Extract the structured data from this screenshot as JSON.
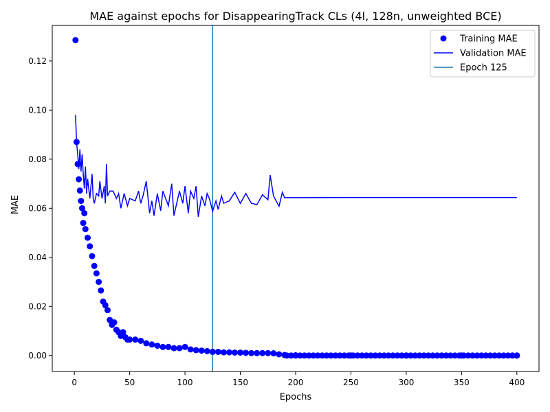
{
  "chart_data": {
    "type": "line",
    "title": "MAE against epochs for DisappearingTrack CLs (4l, 128n, unweighted BCE)",
    "xlabel": "Epochs",
    "ylabel": "MAE",
    "xlim": [
      -20,
      420
    ],
    "ylim": [
      -0.0065,
      0.1345
    ],
    "xticks": [
      0,
      50,
      100,
      150,
      200,
      250,
      300,
      350,
      400
    ],
    "yticks": [
      0.0,
      0.02,
      0.04,
      0.06,
      0.08,
      0.1,
      0.12
    ],
    "ytick_labels": [
      "0.00",
      "0.02",
      "0.04",
      "0.06",
      "0.08",
      "0.10",
      "0.12"
    ],
    "legend_position": "top-right",
    "grid": false,
    "series": [
      {
        "name": "Training MAE",
        "style": "markers",
        "color": "#0000ff",
        "x": [
          1,
          2,
          3,
          4,
          5,
          6,
          7,
          8,
          9,
          10,
          12,
          14,
          16,
          18,
          20,
          22,
          24,
          26,
          28,
          30,
          32,
          34,
          36,
          38,
          40,
          42,
          44,
          46,
          48,
          50,
          55,
          60,
          65,
          70,
          75,
          80,
          85,
          90,
          95,
          100,
          105,
          110,
          115,
          120,
          125,
          130,
          135,
          140,
          145,
          150,
          155,
          160,
          165,
          170,
          175,
          180,
          185,
          190,
          200,
          250,
          300,
          350,
          400
        ],
        "y": [
          0.1285,
          0.087,
          0.078,
          0.0718,
          0.0672,
          0.063,
          0.06,
          0.054,
          0.058,
          0.0515,
          0.048,
          0.0445,
          0.0405,
          0.0365,
          0.0335,
          0.03,
          0.0265,
          0.022,
          0.0205,
          0.0185,
          0.0145,
          0.0125,
          0.0135,
          0.0105,
          0.0095,
          0.008,
          0.0095,
          0.0075,
          0.0065,
          0.0065,
          0.0065,
          0.006,
          0.005,
          0.0045,
          0.004,
          0.0035,
          0.0035,
          0.003,
          0.003,
          0.0035,
          0.0025,
          0.0022,
          0.002,
          0.0018,
          0.0015,
          0.0015,
          0.0013,
          0.0013,
          0.0012,
          0.0012,
          0.0011,
          0.001,
          0.001,
          0.001,
          0.001,
          0.0009,
          0.0005,
          0.0002,
          0.0001,
          0.0,
          0.0,
          0.0,
          0.0
        ]
      },
      {
        "name": "Validation MAE",
        "style": "line",
        "color": "#0000ff",
        "x": [
          1,
          2,
          3,
          4,
          5,
          6,
          7,
          8,
          9,
          10,
          11,
          12,
          14,
          16,
          17,
          18,
          20,
          22,
          23,
          25,
          27,
          28,
          29,
          30,
          32,
          35,
          38,
          40,
          42,
          45,
          48,
          50,
          55,
          58,
          60,
          62,
          65,
          68,
          70,
          72,
          75,
          78,
          80,
          85,
          88,
          90,
          95,
          98,
          100,
          103,
          105,
          108,
          110,
          112,
          115,
          118,
          120,
          122,
          125,
          128,
          130,
          133,
          135,
          140,
          145,
          150,
          155,
          160,
          165,
          170,
          175,
          177,
          180,
          185,
          188,
          190,
          200,
          250,
          300,
          350,
          400
        ],
        "y": [
          0.098,
          0.087,
          0.082,
          0.076,
          0.084,
          0.075,
          0.082,
          0.074,
          0.068,
          0.077,
          0.066,
          0.072,
          0.064,
          0.074,
          0.064,
          0.062,
          0.066,
          0.065,
          0.071,
          0.064,
          0.069,
          0.062,
          0.078,
          0.065,
          0.067,
          0.067,
          0.064,
          0.066,
          0.06,
          0.066,
          0.061,
          0.064,
          0.063,
          0.067,
          0.062,
          0.065,
          0.071,
          0.058,
          0.063,
          0.057,
          0.066,
          0.059,
          0.067,
          0.061,
          0.07,
          0.057,
          0.067,
          0.062,
          0.069,
          0.058,
          0.067,
          0.064,
          0.069,
          0.0565,
          0.065,
          0.061,
          0.066,
          0.064,
          0.0588,
          0.063,
          0.0595,
          0.065,
          0.062,
          0.063,
          0.0665,
          0.062,
          0.066,
          0.062,
          0.0615,
          0.0655,
          0.0635,
          0.0735,
          0.065,
          0.0608,
          0.0665,
          0.0643,
          0.0643,
          0.0644,
          0.0644,
          0.0644,
          0.0644
        ]
      },
      {
        "name": "Epoch 125",
        "style": "vline",
        "color": "#1f77b4",
        "x": 125
      }
    ]
  }
}
